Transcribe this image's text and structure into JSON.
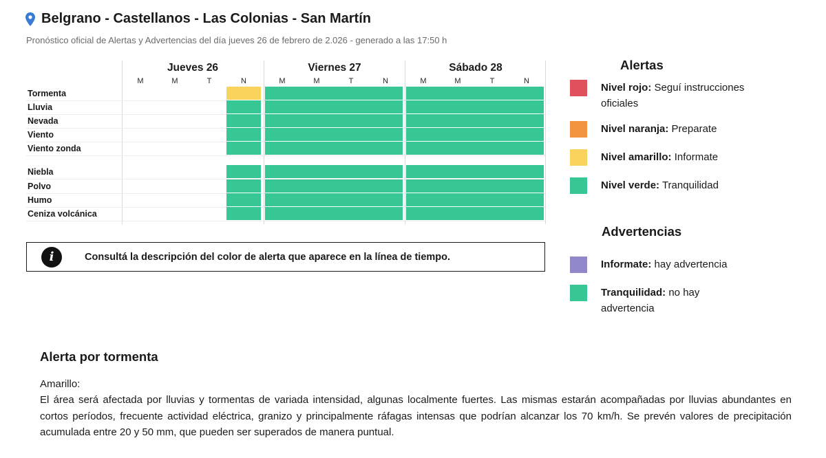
{
  "header": {
    "title": "Belgrano - Castellanos - Las Colonias - San Martín",
    "subtitle": "Pronóstico oficial de Alertas y Advertencias del día jueves 26 de febrero de 2.026 - generado a las 17:50 h",
    "pin_icon": "map-pin-icon",
    "pin_color": "#3a7bd5"
  },
  "timeline": {
    "days": [
      {
        "label": "Jueves 26",
        "slots": [
          "M",
          "M",
          "T",
          "N"
        ]
      },
      {
        "label": "Viernes 27",
        "slots": [
          "M",
          "M",
          "T",
          "N"
        ]
      },
      {
        "label": "Sábado 28",
        "slots": [
          "M",
          "M",
          "T",
          "N"
        ]
      }
    ],
    "groups": [
      {
        "rows": [
          {
            "label": "Tormenta",
            "levels": [
              null,
              null,
              null,
              "amarillo",
              "verde",
              "verde",
              "verde",
              "verde",
              "verde",
              "verde",
              "verde",
              "verde"
            ]
          },
          {
            "label": "Lluvia",
            "levels": [
              null,
              null,
              null,
              "verde",
              "verde",
              "verde",
              "verde",
              "verde",
              "verde",
              "verde",
              "verde",
              "verde"
            ]
          },
          {
            "label": "Nevada",
            "levels": [
              null,
              null,
              null,
              "verde",
              "verde",
              "verde",
              "verde",
              "verde",
              "verde",
              "verde",
              "verde",
              "verde"
            ]
          },
          {
            "label": "Viento",
            "levels": [
              null,
              null,
              null,
              "verde",
              "verde",
              "verde",
              "verde",
              "verde",
              "verde",
              "verde",
              "verde",
              "verde"
            ]
          },
          {
            "label": "Viento zonda",
            "levels": [
              null,
              null,
              null,
              "verde",
              "verde",
              "verde",
              "verde",
              "verde",
              "verde",
              "verde",
              "verde",
              "verde"
            ]
          }
        ]
      },
      {
        "rows": [
          {
            "label": "Niebla",
            "levels": [
              null,
              null,
              null,
              "verde",
              "verde",
              "verde",
              "verde",
              "verde",
              "verde",
              "verde",
              "verde",
              "verde"
            ]
          },
          {
            "label": "Polvo",
            "levels": [
              null,
              null,
              null,
              "verde",
              "verde",
              "verde",
              "verde",
              "verde",
              "verde",
              "verde",
              "verde",
              "verde"
            ]
          },
          {
            "label": "Humo",
            "levels": [
              null,
              null,
              null,
              "verde",
              "verde",
              "verde",
              "verde",
              "verde",
              "verde",
              "verde",
              "verde",
              "verde"
            ]
          },
          {
            "label": "Ceniza volcánica",
            "levels": [
              null,
              null,
              null,
              "verde",
              "verde",
              "verde",
              "verde",
              "verde",
              "verde",
              "verde",
              "verde",
              "verde"
            ]
          }
        ]
      }
    ]
  },
  "info_box": {
    "icon": "info-icon",
    "text": "Consultá la descripción del color de alerta que aparece en la línea de tiempo."
  },
  "legend": {
    "alertas_title": "Alertas",
    "alertas": [
      {
        "bold": "Nivel rojo:",
        "text": " Seguí instrucciones oficiales",
        "color": "#e0515e"
      },
      {
        "bold": "Nivel naranja:",
        "text": " Preparate",
        "color": "#f39440"
      },
      {
        "bold": "Nivel amarillo:",
        "text": " Informate",
        "color": "#f9d35b"
      },
      {
        "bold": "Nivel verde:",
        "text": " Tranquilidad",
        "color": "#36c795"
      }
    ],
    "advertencias_title": "Advertencias",
    "advertencias": [
      {
        "bold": "Informate:",
        "text": " hay advertencia",
        "color": "#9088c8"
      },
      {
        "bold": "Tranquilidad:",
        "text": " no hay advertencia",
        "color": "#36c795"
      }
    ]
  },
  "alert_detail": {
    "title": "Alerta por tormenta",
    "level": "Amarillo:",
    "description": "El área será afectada por lluvias y tormentas de variada intensidad, algunas localmente fuertes. Las mismas estarán acompañadas por lluvias abundantes en cortos períodos, frecuente actividad eléctrica, granizo y principalmente ráfagas intensas que podrían alcanzar los 70 km/h. Se prevén valores de precipitación acumulada entre 20 y 50 mm, que pueden ser superados de manera puntual."
  },
  "colors": {
    "verde": "#36c795",
    "amarillo": "#f9d35b"
  }
}
